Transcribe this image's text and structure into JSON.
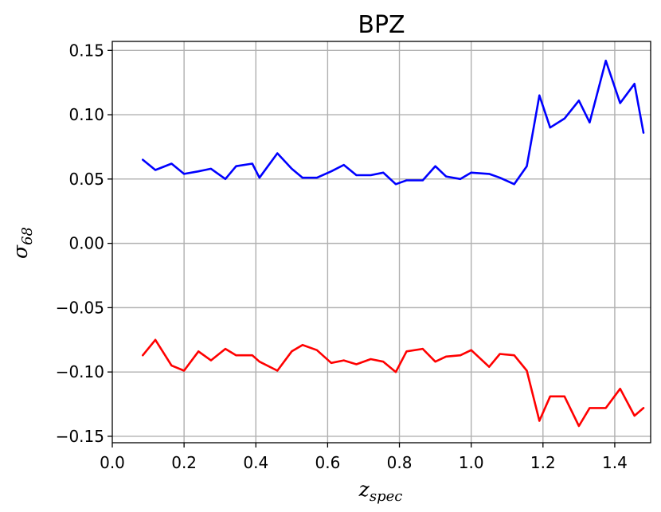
{
  "chart_data": {
    "type": "line",
    "title": "BPZ",
    "xlabel": {
      "main": "z",
      "sub": "spec"
    },
    "ylabel": {
      "main": "σ",
      "sub": "68"
    },
    "xlim": [
      0.0,
      1.5
    ],
    "ylim": [
      -0.155,
      0.157
    ],
    "xticks": [
      0.0,
      0.2,
      0.4,
      0.6,
      0.8,
      1.0,
      1.2,
      1.4
    ],
    "xtick_labels": [
      "0.0",
      "0.2",
      "0.4",
      "0.6",
      "0.8",
      "1.0",
      "1.2",
      "1.4"
    ],
    "yticks": [
      0.15,
      0.1,
      0.05,
      0.0,
      -0.05,
      -0.1,
      -0.15
    ],
    "ytick_labels": [
      "0.15",
      "0.10",
      "0.05",
      "0.00",
      "−0.05",
      "−0.10",
      "−0.15"
    ],
    "grid": true,
    "x": [
      0.085,
      0.12,
      0.165,
      0.2,
      0.24,
      0.275,
      0.315,
      0.345,
      0.39,
      0.41,
      0.46,
      0.5,
      0.53,
      0.57,
      0.61,
      0.645,
      0.68,
      0.72,
      0.755,
      0.79,
      0.82,
      0.865,
      0.9,
      0.93,
      0.97,
      1.0,
      1.05,
      1.08,
      1.12,
      1.155,
      1.19,
      1.22,
      1.26,
      1.3,
      1.33,
      1.375,
      1.415,
      1.455,
      1.48
    ],
    "series": [
      {
        "color": "#0000ff",
        "values": [
          0.065,
          0.057,
          0.062,
          0.054,
          0.056,
          0.058,
          0.05,
          0.06,
          0.062,
          0.051,
          0.07,
          0.058,
          0.051,
          0.051,
          0.056,
          0.061,
          0.053,
          0.053,
          0.055,
          0.046,
          0.049,
          0.049,
          0.06,
          0.052,
          0.05,
          0.055,
          0.054,
          0.051,
          0.046,
          0.06,
          0.115,
          0.09,
          0.097,
          0.111,
          0.094,
          0.142,
          0.109,
          0.124,
          0.086
        ]
      },
      {
        "color": "#ff0000",
        "values": [
          -0.087,
          -0.075,
          -0.095,
          -0.099,
          -0.084,
          -0.091,
          -0.082,
          -0.087,
          -0.087,
          -0.092,
          -0.099,
          -0.084,
          -0.079,
          -0.083,
          -0.093,
          -0.091,
          -0.094,
          -0.09,
          -0.092,
          -0.1,
          -0.084,
          -0.082,
          -0.092,
          -0.088,
          -0.087,
          -0.083,
          -0.096,
          -0.086,
          -0.087,
          -0.099,
          -0.138,
          -0.119,
          -0.119,
          -0.142,
          -0.128,
          -0.128,
          -0.113,
          -0.134,
          -0.128
        ]
      }
    ]
  }
}
